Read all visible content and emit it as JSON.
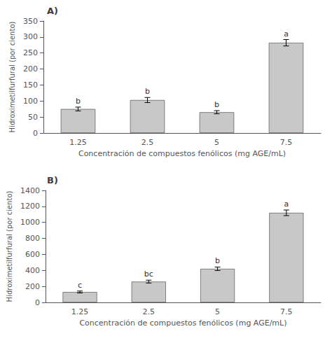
{
  "chart_data": [
    {
      "type": "bar",
      "title": "A)",
      "categories": [
        "1.25",
        "2.5",
        "5",
        "7.5"
      ],
      "values": [
        75,
        103,
        65,
        282
      ],
      "errors": [
        6,
        8,
        5,
        10
      ],
      "annotations": [
        "b",
        "b",
        "b",
        "a"
      ],
      "xlabel": "Concentración de compuestos fenólicos (mg AGE/mL)",
      "ylabel": "Hidroximetilfurfural (por ciento)",
      "ylim": [
        0,
        350
      ],
      "yticks": [
        0,
        50,
        100,
        150,
        200,
        250,
        300,
        350
      ],
      "color": "#c8c8c8",
      "grid": false
    },
    {
      "type": "bar",
      "title": "B)",
      "categories": [
        "1.25",
        "2.5",
        "5",
        "7.5"
      ],
      "values": [
        130,
        260,
        420,
        1120
      ],
      "errors": [
        12,
        18,
        22,
        35
      ],
      "annotations": [
        "c",
        "bc",
        "b",
        "a"
      ],
      "xlabel": "Concentración de compuestos fenólicos (mg AGE/mL)",
      "ylabel": "Hidroximetilfurfural (por ciento)",
      "ylim": [
        0,
        1400
      ],
      "yticks": [
        0,
        200,
        400,
        600,
        800,
        1000,
        1200,
        1400
      ],
      "color": "#c8c8c8",
      "grid": false
    }
  ]
}
